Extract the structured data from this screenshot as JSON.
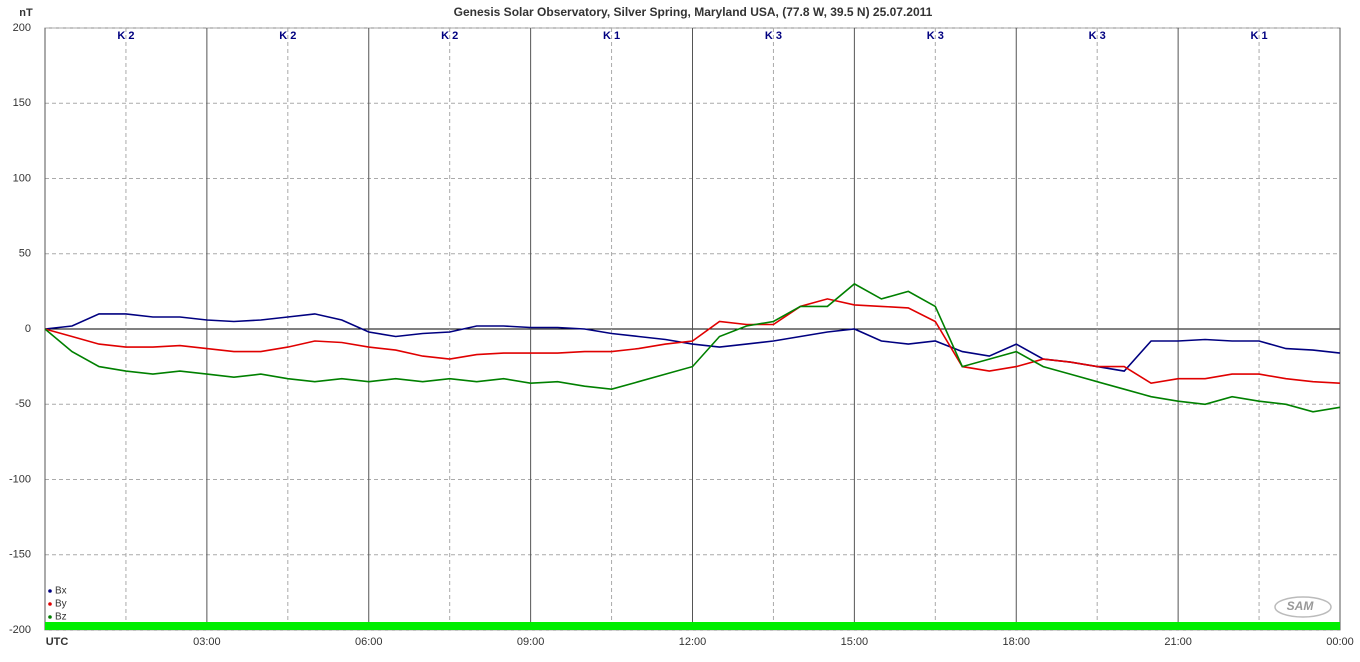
{
  "chart_data": {
    "type": "line",
    "title": "Genesis Solar Observatory, Silver Spring, Maryland USA, (77.8 W, 39.5 N)  25.07.2011",
    "y_label": "nT",
    "k_labels": [
      "K 2",
      "K 2",
      "K 2",
      "K 1",
      "K 3",
      "K 3",
      "K 3",
      "K 1"
    ],
    "logo": "SAM",
    "x": [
      0,
      0.5,
      1,
      1.5,
      2,
      2.5,
      3,
      3.5,
      4,
      4.5,
      5,
      5.5,
      6,
      6.5,
      7,
      7.5,
      8,
      8.5,
      9,
      9.5,
      10,
      10.5,
      11,
      11.5,
      12,
      12.5,
      13,
      13.5,
      14,
      14.5,
      15,
      15.5,
      16,
      16.5,
      17,
      17.5,
      18,
      18.5,
      19,
      19.5,
      20,
      20.5,
      21,
      21.5,
      22,
      22.5,
      23,
      23.5,
      24
    ],
    "series": [
      {
        "name": "Bx",
        "color": "#000080",
        "values": [
          0,
          2,
          10,
          10,
          8,
          8,
          6,
          5,
          6,
          8,
          10,
          6,
          -2,
          -5,
          -3,
          -2,
          2,
          2,
          1,
          1,
          0,
          -3,
          -5,
          -7,
          -10,
          -12,
          -10,
          -8,
          -5,
          -2,
          0,
          -8,
          -10,
          -8,
          -15,
          -18,
          -10,
          -20,
          -22,
          -25,
          -28,
          -8,
          -8,
          -7,
          -8,
          -8,
          -13,
          -14,
          -16
        ]
      },
      {
        "name": "By",
        "color": "#e00000",
        "values": [
          0,
          -5,
          -10,
          -12,
          -12,
          -11,
          -13,
          -15,
          -15,
          -12,
          -8,
          -9,
          -12,
          -14,
          -18,
          -20,
          -17,
          -16,
          -16,
          -16,
          -15,
          -15,
          -13,
          -10,
          -8,
          5,
          3,
          3,
          15,
          20,
          16,
          15,
          14,
          5,
          -25,
          -28,
          -25,
          -20,
          -22,
          -25,
          -25,
          -36,
          -33,
          -33,
          -30,
          -30,
          -33,
          -35,
          -36
        ]
      },
      {
        "name": "Bz",
        "color": "#008000",
        "values": [
          0,
          -15,
          -25,
          -28,
          -30,
          -28,
          -30,
          -32,
          -30,
          -33,
          -35,
          -33,
          -35,
          -33,
          -35,
          -33,
          -35,
          -33,
          -36,
          -35,
          -38,
          -40,
          -35,
          -30,
          -25,
          -5,
          2,
          5,
          15,
          15,
          30,
          20,
          25,
          15,
          -25,
          -20,
          -15,
          -25,
          -30,
          -35,
          -40,
          -45,
          -48,
          -50,
          -45,
          -48,
          -50,
          -55,
          -52
        ]
      }
    ],
    "xlim": [
      0,
      24
    ],
    "xticks": [
      {
        "value": 0,
        "label": "UTC"
      },
      {
        "value": 3,
        "label": "03:00"
      },
      {
        "value": 6,
        "label": "06:00"
      },
      {
        "value": 9,
        "label": "09:00"
      },
      {
        "value": 12,
        "label": "12:00"
      },
      {
        "value": 15,
        "label": "15:00"
      },
      {
        "value": 18,
        "label": "18:00"
      },
      {
        "value": 21,
        "label": "21:00"
      },
      {
        "value": 24,
        "label": "00:00"
      }
    ],
    "minor_xticks": [
      1.5,
      4.5,
      7.5,
      10.5,
      13.5,
      16.5,
      19.5,
      22.5
    ],
    "ylim": [
      -200,
      200
    ],
    "yticks": [
      -200,
      -150,
      -100,
      -50,
      0,
      50,
      100,
      150,
      200
    ],
    "grid": true,
    "legend": "bottom-left"
  }
}
